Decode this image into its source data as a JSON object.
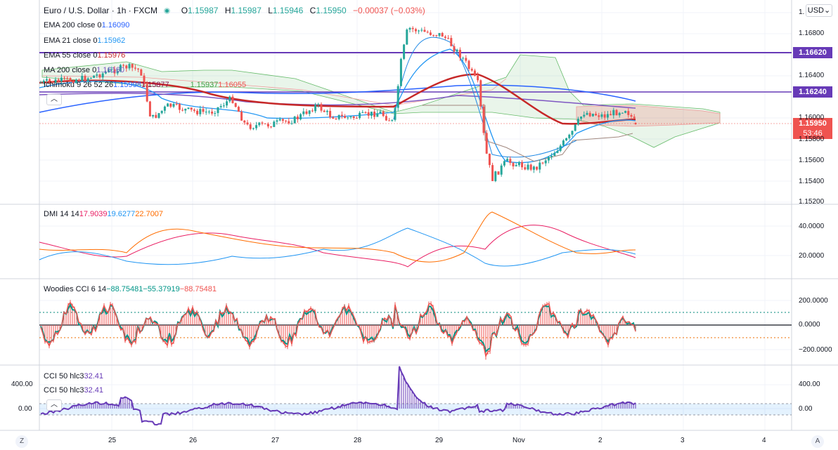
{
  "header": {
    "symbol": "Euro / U.S. Dollar · 1h · FXCM",
    "open_label": "O",
    "open": "1.15987",
    "high_label": "H",
    "high": "1.15987",
    "low_label": "L",
    "low": "1.15946",
    "close_label": "C",
    "close": "1.15950",
    "change": "−0.00037 (−0.03%)",
    "currency": "USD"
  },
  "indicators": {
    "ema200": {
      "label": "EMA 200 close 0",
      "value": "1.16090"
    },
    "ema21": {
      "label": "EMA 21 close 0",
      "value": "1.15962"
    },
    "ema55": {
      "label": "EMA 55 close 0",
      "value": "1.15976"
    },
    "ma200": {
      "label": "MA 200 close 0",
      "value": "1.16160"
    },
    "ichimoku": {
      "label": "Ichimoku 9 26 52 26",
      "v1": "1.15998",
      "v2": "1.15877",
      "v3": "1.15937",
      "v4": "1.16055"
    },
    "dmi": {
      "label": "DMI 14 14",
      "v1": "17.9039",
      "v2": "19.6277",
      "v3": "22.7007"
    },
    "woodies": {
      "label": "Woodies CCI 6 14",
      "v1": "−88.75481",
      "v2": "−55.37919",
      "v3": "−88.75481"
    },
    "cci1": {
      "label": "CCI 50 hlc3",
      "value": "32.41"
    },
    "cci2": {
      "label": "CCI 50 hlc3",
      "value": "32.41"
    }
  },
  "price_tags": {
    "line1": "1.16620",
    "line2": "1.16240",
    "last": "1.15950",
    "countdown": "53:46"
  },
  "colors": {
    "up": "#26a69a",
    "down": "#ef5350",
    "purple_line": "#673ab7",
    "ema200": "#2962ff",
    "ema21": "#2196f3",
    "ema55": "#c62828",
    "ma200": "#7e57c2"
  },
  "y_axis_main": [
    "1.",
    "1.16800",
    "1.16400",
    "1.16000",
    "1.15800",
    "1.15600",
    "1.15400",
    "1.15200"
  ],
  "y_axis_dmi": [
    "40.0000",
    "20.0000"
  ],
  "y_axis_woodies": [
    "200.0000",
    "0.0000",
    "−200.0000"
  ],
  "y_axis_cci": [
    "400.00",
    "0.00"
  ],
  "y_axis_cci_left": [
    "400.00",
    "0.00"
  ],
  "x_axis": [
    "25",
    "26",
    "27",
    "28",
    "29",
    "Nov",
    "2",
    "3",
    "4"
  ],
  "corner": {
    "left": "Z",
    "right": "A"
  },
  "collapse_icon": "chevron-up-icon"
}
